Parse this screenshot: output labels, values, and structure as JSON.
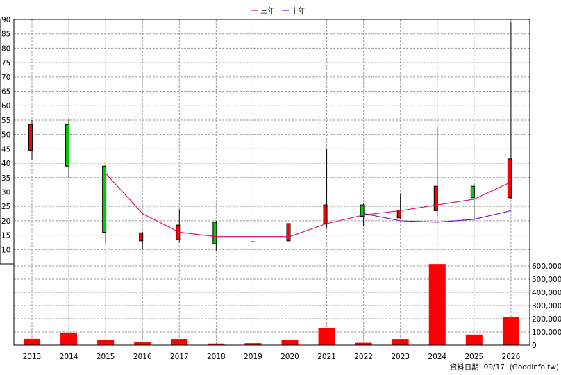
{
  "legend": {
    "series": [
      {
        "name": "三年",
        "color": "#e6006e"
      },
      {
        "name": "十年",
        "color": "#6a00cc"
      }
    ]
  },
  "footer": {
    "note": "資料日期: 09/17  (Goodinfo.tw)"
  },
  "colors": {
    "up": "#ff0000",
    "down": "#00cc00",
    "grid": "#999999",
    "volume": "#ff0000"
  },
  "chart_data": [
    {
      "type": "candlestick",
      "x_categories": [
        "2013",
        "2014",
        "2015",
        "2016",
        "2017",
        "2018",
        "2019",
        "2020",
        "2021",
        "2022",
        "2023",
        "2024",
        "2025",
        "2026"
      ],
      "ylim": [
        5,
        90
      ],
      "y_ticks": [
        10,
        15,
        20,
        25,
        30,
        35,
        40,
        45,
        50,
        55,
        60,
        65,
        70,
        75,
        80,
        85,
        90
      ],
      "grid": true,
      "candles": [
        {
          "x": "2013",
          "open": 44.5,
          "close": 53.5,
          "high": 55,
          "low": 41
        },
        {
          "x": "2014",
          "open": 53.5,
          "close": 39,
          "high": 55.5,
          "low": 35
        },
        {
          "x": "2015",
          "open": 39,
          "close": 16,
          "high": 39.5,
          "low": 12
        },
        {
          "x": "2016",
          "open": 13,
          "close": 15.8,
          "high": 16,
          "low": 10
        },
        {
          "x": "2017",
          "open": 13.5,
          "close": 18.5,
          "high": 24,
          "low": 12.5
        },
        {
          "x": "2018",
          "open": 19.5,
          "close": 12,
          "high": 20,
          "low": 9.5
        },
        {
          "x": "2019",
          "open": 12.7,
          "close": 12.7,
          "high": 13.2,
          "low": 11.5
        },
        {
          "x": "2020",
          "open": 13,
          "close": 19,
          "high": 23,
          "low": 7
        },
        {
          "x": "2021",
          "open": 19,
          "close": 25.5,
          "high": 45,
          "low": 17.5
        },
        {
          "x": "2022",
          "open": 25.5,
          "close": 21.5,
          "high": 26,
          "low": 18
        },
        {
          "x": "2023",
          "open": 21,
          "close": 23.5,
          "high": 29.5,
          "low": 20.5
        },
        {
          "x": "2024",
          "open": 23.5,
          "close": 32,
          "high": 52.5,
          "low": 21.5
        },
        {
          "x": "2025",
          "open": 32,
          "close": 28,
          "high": 33,
          "low": 20
        },
        {
          "x": "2026",
          "open": 28,
          "close": 41.5,
          "high": 89,
          "low": 27.5
        }
      ],
      "series": [
        {
          "name": "三年",
          "x": [
            "2015",
            "2016",
            "2017",
            "2018",
            "2019",
            "2020",
            "2021",
            "2022",
            "2023",
            "2024",
            "2025",
            "2026"
          ],
          "values": [
            36.5,
            22.5,
            16,
            14.5,
            14.5,
            14.5,
            19,
            22,
            23.5,
            25.5,
            27.5,
            33.5
          ]
        },
        {
          "name": "十年",
          "x": [
            "2022",
            "2023",
            "2024",
            "2025",
            "2026"
          ],
          "values": [
            22.5,
            20,
            19.5,
            20.5,
            23.5
          ]
        }
      ]
    },
    {
      "type": "bar",
      "categories": [
        "2013",
        "2014",
        "2015",
        "2016",
        "2017",
        "2018",
        "2019",
        "2020",
        "2021",
        "2022",
        "2023",
        "2024",
        "2025",
        "2026"
      ],
      "values": [
        48000,
        95000,
        42000,
        22000,
        47000,
        12000,
        15000,
        42000,
        130000,
        18000,
        47000,
        615000,
        80000,
        215000
      ],
      "ylim": [
        0,
        600000
      ],
      "y_tick_labels": [
        "0",
        "100,000",
        "200,000",
        "300,000",
        "400,000",
        "500,000",
        "600,000"
      ],
      "grid": true
    }
  ]
}
